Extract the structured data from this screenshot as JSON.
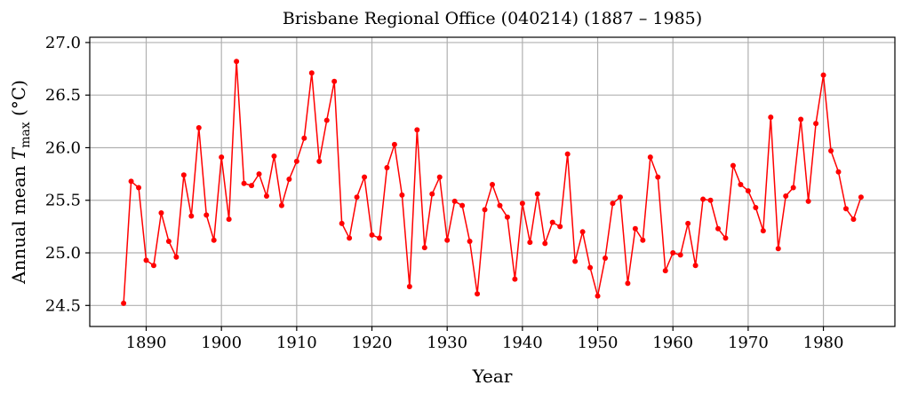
{
  "chart_data": {
    "type": "line",
    "title": "Brisbane Regional Office (040214) (1887 – 1985)",
    "xlabel": "Year",
    "ylabel_prefix": "Annual mean ",
    "ylabel_var": "T",
    "ylabel_sub": "max",
    "ylabel_unit": " (°C)",
    "xlim": [
      1882.5,
      1989.5
    ],
    "ylim": [
      24.3,
      27.05
    ],
    "xticks": [
      1890,
      1900,
      1910,
      1920,
      1930,
      1940,
      1950,
      1960,
      1970,
      1980
    ],
    "xtick_labels": [
      "1890",
      "1900",
      "1910",
      "1920",
      "1930",
      "1940",
      "1950",
      "1960",
      "1970",
      "1980"
    ],
    "yticks": [
      24.5,
      25.0,
      25.5,
      26.0,
      26.5,
      27.0
    ],
    "ytick_labels": [
      "24.5",
      "25.0",
      "25.5",
      "26.0",
      "26.5",
      "27.0"
    ],
    "grid": true,
    "legend": "none",
    "series": [
      {
        "color": "#ff0000",
        "x": [
          1887,
          1888,
          1889,
          1890,
          1891,
          1892,
          1893,
          1894,
          1895,
          1896,
          1897,
          1898,
          1899,
          1900,
          1901,
          1902,
          1903,
          1904,
          1905,
          1906,
          1907,
          1908,
          1909,
          1910,
          1911,
          1912,
          1913,
          1914,
          1915,
          1916,
          1917,
          1918,
          1919,
          1920,
          1921,
          1922,
          1923,
          1924,
          1925,
          1926,
          1927,
          1928,
          1929,
          1930,
          1931,
          1932,
          1933,
          1934,
          1935,
          1936,
          1937,
          1938,
          1939,
          1940,
          1941,
          1942,
          1943,
          1944,
          1945,
          1946,
          1947,
          1948,
          1949,
          1950,
          1951,
          1952,
          1953,
          1954,
          1955,
          1956,
          1957,
          1958,
          1959,
          1960,
          1961,
          1962,
          1963,
          1964,
          1965,
          1966,
          1967,
          1968,
          1969,
          1970,
          1971,
          1972,
          1973,
          1974,
          1975,
          1976,
          1977,
          1978,
          1979,
          1980,
          1981,
          1982,
          1983,
          1984,
          1985
        ],
        "y": [
          24.52,
          25.68,
          25.62,
          24.93,
          24.88,
          25.38,
          25.11,
          24.96,
          25.74,
          25.35,
          26.19,
          25.36,
          25.12,
          25.91,
          25.32,
          26.82,
          25.66,
          25.64,
          25.75,
          25.54,
          25.92,
          25.45,
          25.7,
          25.87,
          26.09,
          26.71,
          25.87,
          26.26,
          26.63,
          25.28,
          25.14,
          25.53,
          25.72,
          25.17,
          25.14,
          25.81,
          26.03,
          25.55,
          24.68,
          26.17,
          25.05,
          25.56,
          25.72,
          25.12,
          25.49,
          25.45,
          25.11,
          24.61,
          25.41,
          25.65,
          25.45,
          25.34,
          24.75,
          25.47,
          25.1,
          25.56,
          25.09,
          25.29,
          25.25,
          25.94,
          24.92,
          25.2,
          24.86,
          24.59,
          24.95,
          25.47,
          25.53,
          24.71,
          25.23,
          25.12,
          25.91,
          25.72,
          24.83,
          25.0,
          24.98,
          25.28,
          24.88,
          25.51,
          25.5,
          25.23,
          25.14,
          25.83,
          25.65,
          25.59,
          25.43,
          25.21,
          26.29,
          25.04,
          25.54,
          25.62,
          26.27,
          25.49,
          26.23,
          26.69,
          25.97,
          25.77,
          25.42,
          25.32,
          25.53
        ]
      }
    ]
  }
}
